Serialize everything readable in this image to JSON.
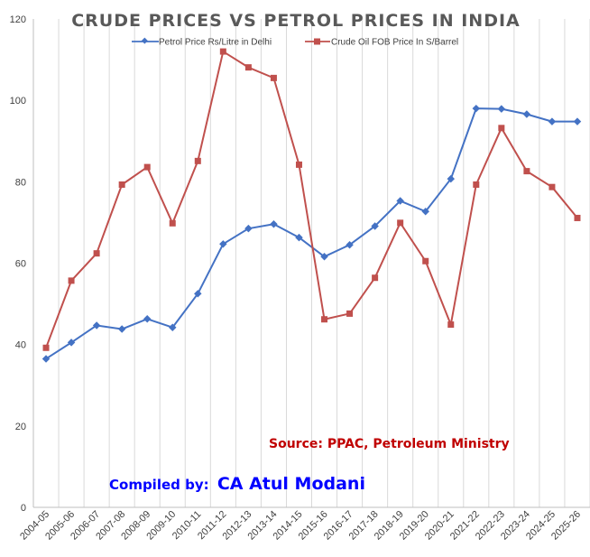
{
  "chart_data": {
    "type": "line",
    "title": "CRUDE PRICES VS PETROL PRICES IN INDIA",
    "categories": [
      "2004-05",
      "2005-06",
      "2006-07",
      "2007-08",
      "2008-09",
      "2009-10",
      "2010-11",
      "2011-12",
      "2012-13",
      "2013-14",
      "2014-15",
      "2015-16",
      "2016-17",
      "2017-18",
      "2018-19",
      "2019-20",
      "2020-21",
      "2021-22",
      "2022-23",
      "2023-24",
      "2024-25",
      "2025-26"
    ],
    "series": [
      {
        "name": "Petrol Price Rs/Litre in Delhi",
        "color": "#4472C4",
        "marker": "diamond",
        "values": [
          36.5,
          40.5,
          44.7,
          43.8,
          46.3,
          44.2,
          52.5,
          64.7,
          68.5,
          69.6,
          66.3,
          61.6,
          64.5,
          69.1,
          75.3,
          72.7,
          80.7,
          98.0,
          97.9,
          96.6,
          94.8,
          94.8
        ]
      },
      {
        "name": "Crude Oil FOB Price In S/Barrel",
        "color": "#C0504D",
        "marker": "square",
        "values": [
          39.2,
          55.7,
          62.4,
          79.3,
          83.6,
          69.8,
          85.1,
          112.0,
          108.1,
          105.5,
          84.2,
          46.2,
          47.6,
          56.4,
          69.9,
          60.5,
          44.9,
          79.3,
          93.2,
          82.6,
          78.7,
          71.1
        ]
      }
    ],
    "ylim": [
      0,
      120
    ],
    "yticks": [
      0,
      20,
      40,
      60,
      80,
      100,
      120
    ],
    "grid": "vertical",
    "legend": "top"
  },
  "annotations": {
    "source": "Source: PPAC, Petroleum Ministry",
    "source_color": "#C00000",
    "compiled_label": "Compiled by: ",
    "compiled_name": "CA Atul Modani",
    "compiled_color": "#0000FF"
  }
}
